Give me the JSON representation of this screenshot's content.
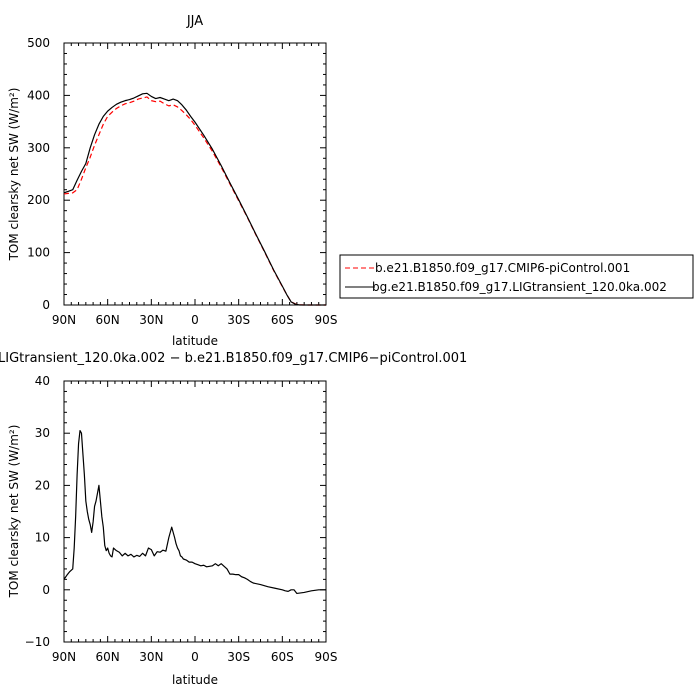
{
  "chart_data": [
    {
      "type": "line",
      "title": "JJA",
      "xlabel": "latitude",
      "ylabel": "TOM clearsky net SW (W/m²)",
      "xlim": [
        90,
        -90
      ],
      "ylim": [
        0,
        500
      ],
      "xticks": [
        90,
        60,
        30,
        0,
        -30,
        -60,
        -90
      ],
      "xtick_labels": [
        "90N",
        "60N",
        "30N",
        "0",
        "30S",
        "60S",
        "90S"
      ],
      "yticks": [
        0,
        100,
        200,
        300,
        400,
        500
      ],
      "ytick_labels": [
        "0",
        "100",
        "200",
        "300",
        "400",
        "500"
      ],
      "legend_position": "right",
      "series": [
        {
          "name": "b.e21.B1850.f09_g17.CMIP6-piControl.001",
          "color": "#ff0000",
          "dash": "dashed",
          "x": [
            90,
            87,
            84,
            81,
            78,
            75,
            72,
            69,
            66,
            63,
            60,
            57,
            54,
            51,
            48,
            45,
            42,
            39,
            36,
            33,
            30,
            27,
            24,
            21,
            18,
            15,
            12,
            9,
            6,
            3,
            0,
            -6,
            -12,
            -18,
            -24,
            -30,
            -36,
            -42,
            -48,
            -54,
            -60,
            -63,
            -66,
            -69,
            -72,
            -75,
            -78,
            -81,
            -84,
            -87,
            -90
          ],
          "y": [
            212,
            213,
            214,
            220,
            240,
            262,
            282,
            305,
            325,
            345,
            360,
            368,
            375,
            380,
            384,
            386,
            389,
            393,
            395,
            397,
            390,
            388,
            389,
            384,
            380,
            382,
            378,
            371,
            363,
            354,
            343,
            319,
            293,
            263,
            231,
            199,
            167,
            133,
            100,
            66,
            35,
            20,
            6,
            2,
            0.5,
            0,
            0,
            0,
            0,
            0,
            0
          ]
        },
        {
          "name": "bg.e21.B1850.f09_g17.LIGtransient_120.0ka.002",
          "color": "#000000",
          "dash": "solid",
          "x": [
            90,
            87,
            84,
            81,
            78,
            75,
            72,
            69,
            66,
            63,
            60,
            57,
            54,
            51,
            48,
            45,
            42,
            39,
            36,
            33,
            30,
            27,
            24,
            21,
            18,
            15,
            12,
            9,
            6,
            3,
            0,
            -6,
            -12,
            -18,
            -24,
            -30,
            -36,
            -42,
            -48,
            -54,
            -60,
            -63,
            -66,
            -69,
            -72,
            -75,
            -78,
            -81,
            -84,
            -87,
            -90
          ],
          "y": [
            214,
            217,
            220,
            238,
            255,
            270,
            300,
            325,
            345,
            360,
            370,
            377,
            383,
            387,
            390,
            392,
            395,
            399,
            403,
            404,
            398,
            394,
            396,
            393,
            390,
            393,
            390,
            382,
            372,
            360,
            349,
            324,
            297,
            266,
            233,
            201,
            168,
            134,
            101,
            67,
            36,
            20,
            6,
            1.5,
            0,
            0,
            0,
            0,
            0,
            0,
            0
          ]
        }
      ]
    },
    {
      "type": "line",
      "title": "LIGtransient_120.0ka.002 − b.e21.B1850.f09_g17.CMIP6−piControl.001",
      "xlabel": "latitude",
      "ylabel": "TOM clearsky net SW (W/m²)",
      "xlim": [
        90,
        -90
      ],
      "ylim": [
        -10,
        40
      ],
      "xticks": [
        90,
        60,
        30,
        0,
        -30,
        -60,
        -90
      ],
      "xtick_labels": [
        "90N",
        "60N",
        "30N",
        "0",
        "30S",
        "60S",
        "90S"
      ],
      "yticks": [
        -10,
        0,
        10,
        20,
        30,
        40
      ],
      "ytick_labels": [
        "−10",
        "0",
        "10",
        "20",
        "30",
        "40"
      ],
      "series": [
        {
          "color": "#000000",
          "dash": "solid",
          "x": [
            90,
            88,
            86,
            84,
            83,
            82,
            81,
            80,
            79,
            78,
            77,
            76,
            75,
            74,
            73,
            72,
            71,
            70,
            69,
            68,
            67,
            66,
            65,
            64,
            63,
            62,
            61,
            60,
            59,
            58,
            57,
            56,
            54,
            52,
            50,
            48,
            46,
            44,
            42,
            40,
            38,
            36,
            34,
            32,
            30,
            28,
            26,
            24,
            22,
            20,
            18,
            17,
            16,
            15,
            14,
            13,
            12,
            11,
            10,
            9,
            8,
            6,
            4,
            2,
            0,
            -2,
            -4,
            -6,
            -8,
            -10,
            -12,
            -14,
            -16,
            -18,
            -20,
            -22,
            -24,
            -26,
            -28,
            -30,
            -32,
            -34,
            -36,
            -38,
            -40,
            -45,
            -50,
            -55,
            -60,
            -62,
            -64,
            -66,
            -68,
            -70,
            -75,
            -80,
            -85,
            -90
          ],
          "y": [
            2,
            2.8,
            3.5,
            4,
            8,
            14,
            22,
            28,
            30.5,
            30,
            26,
            22,
            17,
            15,
            13.5,
            12.5,
            11,
            13,
            16,
            17,
            18.5,
            20,
            17,
            14,
            12,
            8.5,
            7.5,
            8,
            7,
            6.5,
            6.3,
            8,
            7.5,
            7.2,
            6.5,
            7,
            6.5,
            6.8,
            6.3,
            6.6,
            6.4,
            7,
            6.5,
            8,
            7.7,
            6.5,
            7.3,
            7.2,
            7.6,
            7.4,
            10,
            11,
            12,
            11,
            10,
            8.8,
            8,
            7.5,
            6.5,
            6.3,
            5.9,
            5.7,
            5.3,
            5.3,
            5,
            4.8,
            4.6,
            4.7,
            4.4,
            4.5,
            4.6,
            5,
            4.6,
            5,
            4.5,
            4,
            3,
            3,
            2.9,
            2.9,
            2.5,
            2.3,
            2,
            1.6,
            1.3,
            1,
            0.6,
            0.3,
            0,
            -0.2,
            -0.3,
            0,
            0,
            -0.7,
            -0.5,
            -0.2,
            0,
            0
          ]
        }
      ]
    }
  ]
}
